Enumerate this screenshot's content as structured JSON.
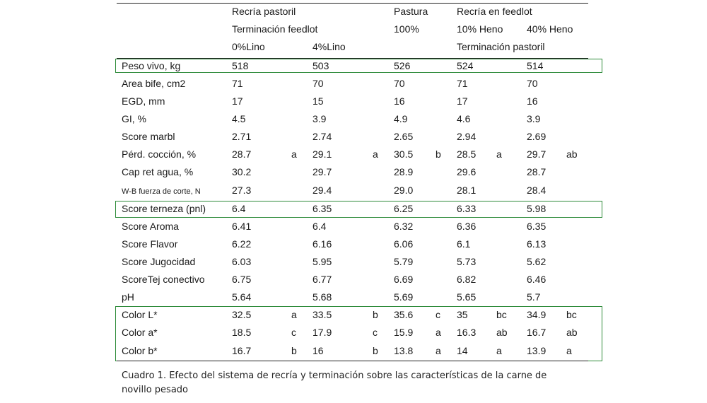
{
  "header": {
    "line1": [
      "Recría pastoril",
      "Pastura",
      "Recría en feedlot"
    ],
    "line2": [
      "Terminación feedlot",
      "100%",
      "10% Heno",
      "40% Heno"
    ],
    "line3": [
      "0%Lino",
      "4%Lino",
      "Terminación pastoril"
    ]
  },
  "rows": [
    {
      "label": "Peso vivo, kg",
      "cells": [
        "518",
        "",
        "503",
        "",
        "526",
        "",
        "524",
        "",
        "514",
        ""
      ]
    },
    {
      "label": "Area bife, cm2",
      "cells": [
        "71",
        "",
        "70",
        "",
        "70",
        "",
        "71",
        "",
        "70",
        ""
      ]
    },
    {
      "label": "EGD, mm",
      "cells": [
        "17",
        "",
        "15",
        "",
        "16",
        "",
        "17",
        "",
        "16",
        ""
      ]
    },
    {
      "label": "GI, %",
      "cells": [
        "4.5",
        "",
        "3.9",
        "",
        "4.9",
        "",
        "4.6",
        "",
        "3.9",
        ""
      ]
    },
    {
      "label": "Score marbl",
      "cells": [
        "2.71",
        "",
        "2.74",
        "",
        "2.65",
        "",
        "2.94",
        "",
        "2.69",
        ""
      ]
    },
    {
      "label": "Pérd. cocción, %",
      "cells": [
        "28.7",
        "a",
        "29.1",
        "a",
        "30.5",
        "b",
        "28.5",
        "a",
        "29.7",
        "ab"
      ]
    },
    {
      "label": "Cap ret agua, %",
      "cells": [
        "30.2",
        "",
        "29.7",
        "",
        "28.9",
        "",
        "29.6",
        "",
        "28.7",
        ""
      ]
    },
    {
      "label": "W-B fuerza de corte, N",
      "small": true,
      "cells": [
        "27.3",
        "",
        "29.4",
        "",
        "29.0",
        "",
        "28.1",
        "",
        "28.4",
        ""
      ]
    },
    {
      "label": "Score terneza (pnl)",
      "cells": [
        "6.4",
        "",
        "6.35",
        "",
        "6.25",
        "",
        "6.33",
        "",
        "5.98",
        ""
      ]
    },
    {
      "label": "Score Aroma",
      "cells": [
        "6.41",
        "",
        "6.4",
        "",
        "6.32",
        "",
        "6.36",
        "",
        "6.35",
        ""
      ]
    },
    {
      "label": "Score Flavor",
      "cells": [
        "6.22",
        "",
        "6.16",
        "",
        "6.06",
        "",
        "6.1",
        "",
        "6.13",
        ""
      ]
    },
    {
      "label": "Score Jugocidad",
      "cells": [
        "6.03",
        "",
        "5.95",
        "",
        "5.79",
        "",
        "5.73",
        "",
        "5.62",
        ""
      ]
    },
    {
      "label": "ScoreTej conectivo",
      "cells": [
        "6.75",
        "",
        "6.77",
        "",
        "6.69",
        "",
        "6.82",
        "",
        "6.46",
        ""
      ]
    },
    {
      "label": "pH",
      "cells": [
        "5.64",
        "",
        "5.68",
        "",
        "5.69",
        "",
        "5.65",
        "",
        "5.7",
        ""
      ]
    },
    {
      "label": "Color L*",
      "cells": [
        "32.5",
        "a",
        "33.5",
        "b",
        "35.6",
        "c",
        "35",
        "bc",
        "34.9",
        "bc"
      ]
    },
    {
      "label": "Color a*",
      "cells": [
        "18.5",
        "c",
        "17.9",
        "c",
        "15.9",
        "a",
        "16.3",
        "ab",
        "16.7",
        "ab"
      ]
    },
    {
      "label": "Color b*",
      "cells": [
        "16.7",
        "b",
        "16",
        "b",
        "13.8",
        "a",
        "14",
        "a",
        "13.9",
        "a"
      ]
    }
  ],
  "caption": "Cuadro 1. Efecto del sistema de recría y terminación sobre las características de la carne de novillo pesado",
  "highlight_color": "#2e8b3a"
}
